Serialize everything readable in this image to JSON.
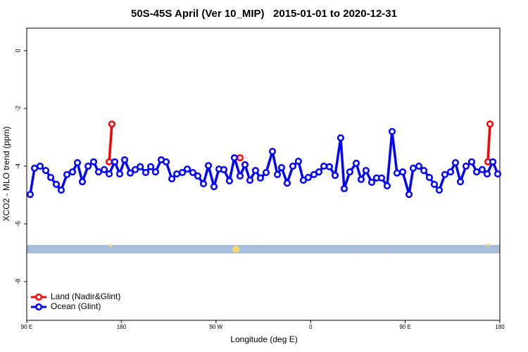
{
  "chart_data": {
    "type": "line",
    "title": "50S-45S April (Ver 10_MIP)   2015-01-01 to 2020-12-31",
    "xlabel": "Longitude (deg E)",
    "ylabel": "XCO2 - MLO trend (ppm)",
    "xlim": [
      90,
      540
    ],
    "ylim": [
      -9.34,
      0.78
    ],
    "xticks": [
      {
        "value": 90,
        "label": "90 E"
      },
      {
        "value": 180,
        "label": "180"
      },
      {
        "value": 270,
        "label": "90 W"
      },
      {
        "value": 360,
        "label": "0"
      },
      {
        "value": 450,
        "label": "90 E"
      },
      {
        "value": 540,
        "label": "180"
      }
    ],
    "yticks": [
      -8,
      -6,
      -4,
      -2,
      0
    ],
    "legend": "lower left",
    "series": [
      {
        "name": "Land (Nadir&Glint)",
        "color": "#ff0000",
        "x": [
          168.4,
          171.0,
          null,
          292.9,
          null,
          528.6,
          530.6
        ],
        "values": [
          -3.85,
          -2.54,
          null,
          -3.71,
          null,
          -3.85,
          -2.54
        ]
      },
      {
        "name": "Ocean (Glint)",
        "color": "#0000ff",
        "x": [
          93.3,
          97.4,
          102.7,
          108.1,
          112.8,
          118.1,
          122.8,
          128.2,
          133.5,
          138.2,
          142.9,
          148.3,
          153.6,
          158.3,
          163.7,
          168.4,
          173.7,
          178.4,
          183.1,
          188.5,
          193.2,
          197.9,
          203.2,
          207.9,
          212.5,
          217.9,
          222.6,
          228.0,
          232.7,
          238.0,
          242.7,
          248.0,
          252.7,
          258.1,
          262.8,
          268.1,
          272.8,
          277.5,
          282.8,
          287.5,
          292.9,
          297.6,
          302.3,
          307.6,
          312.3,
          317.7,
          323.7,
          328.4,
          332.4,
          337.7,
          343.1,
          348.4,
          353.1,
          357.8,
          363.2,
          367.9,
          372.6,
          377.9,
          383.3,
          388.6,
          392.0,
          397.3,
          403.4,
          408.1,
          412.7,
          418.1,
          422.8,
          427.5,
          432.8,
          437.5,
          442.2,
          447.6,
          453.6,
          457.6,
          463.0,
          467.7,
          473.0,
          477.7,
          482.4,
          487.7,
          493.1,
          497.8,
          502.5,
          507.8,
          513.2,
          517.9,
          523.2,
          527.9,
          533.3,
          538.0
        ],
        "values": [
          -4.98,
          -4.07,
          -4.0,
          -4.15,
          -4.39,
          -4.63,
          -4.83,
          -4.29,
          -4.2,
          -3.88,
          -4.54,
          -4.0,
          -3.85,
          -4.2,
          -4.12,
          -4.27,
          -3.85,
          -4.27,
          -3.78,
          -4.24,
          -4.12,
          -4.02,
          -4.22,
          -4.02,
          -4.2,
          -3.78,
          -3.85,
          -4.44,
          -4.27,
          -4.22,
          -4.1,
          -4.22,
          -4.34,
          -4.61,
          -3.98,
          -4.71,
          -4.1,
          -4.12,
          -4.51,
          -3.71,
          -4.34,
          -3.95,
          -4.49,
          -4.15,
          -4.41,
          -4.22,
          -3.49,
          -4.29,
          -4.05,
          -4.59,
          -4.0,
          -3.83,
          -4.49,
          -4.39,
          -4.29,
          -4.2,
          -4.0,
          -4.02,
          -4.32,
          -3.02,
          -4.78,
          -4.2,
          -3.9,
          -4.46,
          -4.15,
          -4.56,
          -4.41,
          -4.41,
          -4.68,
          -2.8,
          -4.24,
          -4.2,
          -4.98,
          -4.07,
          -4.0,
          -4.15,
          -4.39,
          -4.63,
          -4.83,
          -4.29,
          -4.2,
          -3.88,
          -4.54,
          -4.0,
          -3.85,
          -4.2,
          -4.12,
          -4.27,
          -3.85,
          -4.27
        ]
      }
    ]
  }
}
